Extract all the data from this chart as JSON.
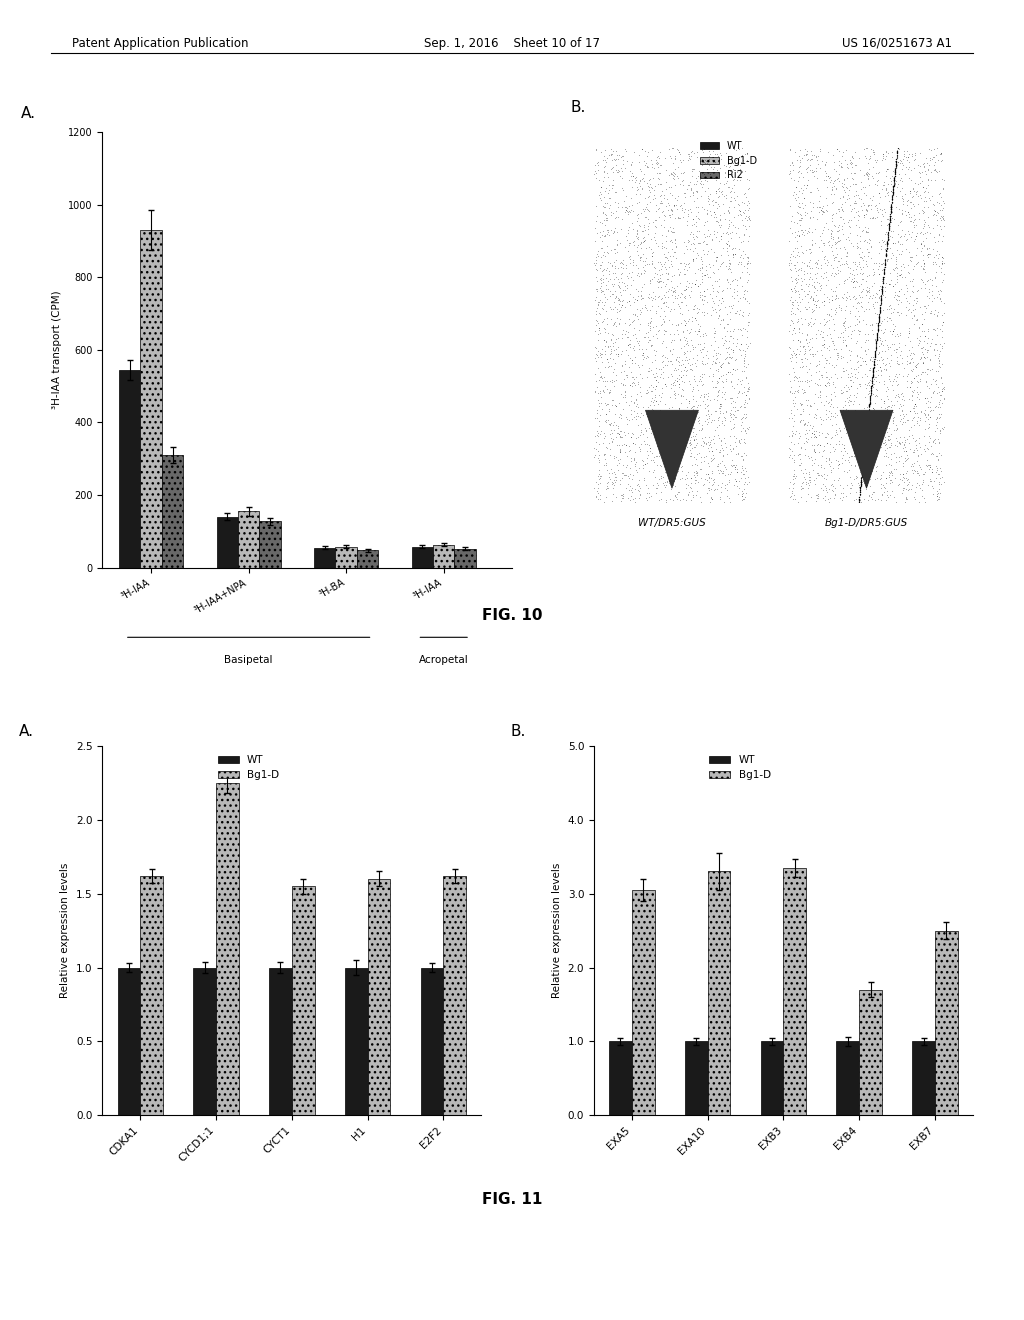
{
  "fig10_A": {
    "groups": [
      "³H-IAA",
      "³H-IAA+NPA",
      "³H-BA",
      "³H-IAA"
    ],
    "WT": [
      545,
      140,
      55,
      58
    ],
    "Bg1D": [
      930,
      155,
      58,
      63
    ],
    "Ri2": [
      310,
      128,
      48,
      52
    ],
    "WT_err": [
      28,
      10,
      4,
      4
    ],
    "Bg1D_err": [
      55,
      12,
      4,
      4
    ],
    "Ri2_err": [
      22,
      10,
      4,
      4
    ],
    "ylabel": "³H-IAA transport (CPM)",
    "ylim": [
      0,
      1200
    ],
    "yticks": [
      0,
      200,
      400,
      600,
      800,
      1000,
      1200
    ]
  },
  "fig10_B": {
    "label_left": "WT/DR5:GUS",
    "label_right": "Bg1-D/DR5:GUS"
  },
  "fig11_A": {
    "genes": [
      "CDKA1",
      "CYCD1;1",
      "CYCT1",
      "H1",
      "E2F2"
    ],
    "WT": [
      1.0,
      1.0,
      1.0,
      1.0,
      1.0
    ],
    "Bg1D": [
      1.62,
      2.25,
      1.55,
      1.6,
      1.62
    ],
    "WT_err": [
      0.03,
      0.04,
      0.04,
      0.05,
      0.03
    ],
    "Bg1D_err": [
      0.05,
      0.07,
      0.05,
      0.05,
      0.05
    ],
    "ylabel": "Relative expression levels",
    "ylim": [
      0,
      2.5
    ],
    "yticks": [
      0.0,
      0.5,
      1.0,
      1.5,
      2.0,
      2.5
    ]
  },
  "fig11_B": {
    "genes": [
      "EXA5",
      "EXA10",
      "EXB3",
      "EXB4",
      "EXB7"
    ],
    "WT": [
      1.0,
      1.0,
      1.0,
      1.0,
      1.0
    ],
    "Bg1D": [
      3.05,
      3.3,
      3.35,
      1.7,
      2.5
    ],
    "WT_err": [
      0.05,
      0.05,
      0.05,
      0.06,
      0.05
    ],
    "Bg1D_err": [
      0.15,
      0.25,
      0.12,
      0.1,
      0.12
    ],
    "ylabel": "Relative expression levels",
    "ylim": [
      0,
      5.0
    ],
    "yticks": [
      0.0,
      1.0,
      2.0,
      3.0,
      4.0,
      5.0
    ]
  },
  "header_left": "Patent Application Publication",
  "header_center": "Sep. 1, 2016    Sheet 10 of 17",
  "header_right": "US 16/0251673 A1",
  "fig10_caption": "FIG. 10",
  "fig11_caption": "FIG. 11",
  "wt_color": "#1a1a1a",
  "bg1d_color": "#b8b8b8",
  "ri2_color": "#686868"
}
